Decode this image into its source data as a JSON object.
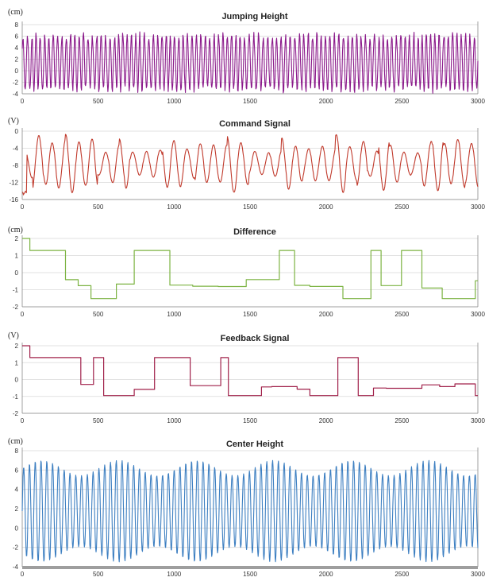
{
  "chart_data": [
    {
      "type": "line",
      "title": "Jumping Height",
      "unit_label": "(cm)",
      "x_ticks": [
        "0",
        "500",
        "1000",
        "1500",
        "2000",
        "2500",
        "3000"
      ],
      "y_ticks": [
        "6",
        "4",
        "2",
        "0",
        "-2",
        "-4"
      ],
      "xlim": [
        0,
        3000
      ],
      "ylim": [
        -4,
        8
      ],
      "y_top_label": "8",
      "grid": true,
      "series": [
        {
          "color": "#8b1a8b",
          "pattern": "dense-oscillation",
          "min": -4,
          "max": 6.8
        }
      ]
    },
    {
      "type": "line",
      "title": "Command Signal",
      "unit_label": "(V)",
      "x_ticks": [
        "0",
        "500",
        "1000",
        "1500",
        "2000",
        "2500",
        "3000"
      ],
      "y_ticks": [
        "0",
        "-4",
        "-8",
        "-12",
        "-16"
      ],
      "xlim": [
        0,
        3000
      ],
      "ylim": [
        -16,
        0
      ],
      "grid": true,
      "series": [
        {
          "color": "#c0392b",
          "pattern": "irregular-oscillation",
          "min": -15,
          "max": -0.2
        }
      ]
    },
    {
      "type": "line",
      "title": "Difference",
      "unit_label": "(cm)",
      "x_ticks": [
        "0",
        "500",
        "1000",
        "1500",
        "2000",
        "2500",
        "3000"
      ],
      "y_ticks": [
        "2",
        "1",
        "0",
        "-1",
        "-2"
      ],
      "xlim": [
        0,
        3000
      ],
      "ylim": [
        -2,
        2
      ],
      "grid": true,
      "series": [
        {
          "color": "#7cb342",
          "pattern": "step",
          "min": -1.6,
          "max": 2
        }
      ]
    },
    {
      "type": "line",
      "title": "Feedback Signal",
      "unit_label": "(V)",
      "x_ticks": [
        "0",
        "500",
        "1000",
        "1500",
        "2000",
        "2500",
        "3000"
      ],
      "y_ticks": [
        "2",
        "1",
        "0",
        "-1",
        "-2"
      ],
      "xlim": [
        0,
        3000
      ],
      "ylim": [
        -2,
        2
      ],
      "grid": true,
      "series": [
        {
          "color": "#a0204a",
          "pattern": "step",
          "min": -1,
          "max": 2
        }
      ]
    },
    {
      "type": "line",
      "title": "Center Height",
      "unit_label": "(cm)",
      "x_ticks": [
        "0",
        "500",
        "1000",
        "1500",
        "2000",
        "2500",
        "3000"
      ],
      "y_ticks": [
        "8",
        "6",
        "4",
        "2",
        "0",
        "-2",
        "-4"
      ],
      "xlim": [
        0,
        3000
      ],
      "ylim": [
        -4,
        8
      ],
      "grid": true,
      "series": [
        {
          "color": "#3d7fc1",
          "pattern": "regular-oscillation",
          "min": -3.5,
          "max": 7
        }
      ]
    }
  ]
}
